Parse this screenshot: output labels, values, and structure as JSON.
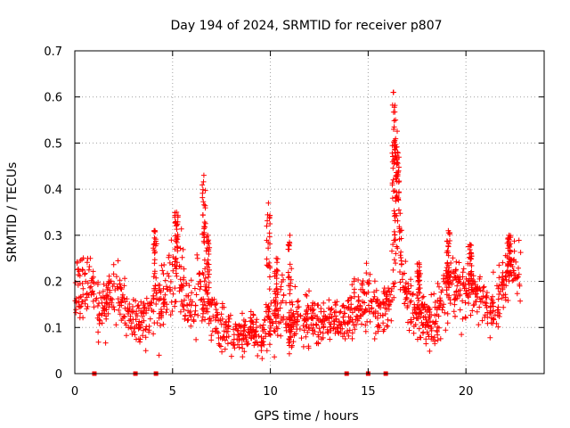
{
  "chart_data": {
    "type": "scatter",
    "title": "Day 194 of 2024, SRMTID for receiver p807",
    "xlabel": "GPS time / hours",
    "ylabel": "SRMTID / TECUs",
    "xlim": [
      0,
      24
    ],
    "ylim": [
      0,
      0.7
    ],
    "xticks": [
      0,
      5,
      10,
      15,
      20
    ],
    "yticks": [
      0,
      0.1,
      0.2,
      0.3,
      0.4,
      0.5,
      0.6,
      0.7
    ],
    "xtick_labels": [
      "0",
      "5",
      "10",
      "15",
      "20"
    ],
    "ytick_labels": [
      "0",
      "0.1",
      "0.2",
      "0.3",
      "0.4",
      "0.5",
      "0.6",
      "0.7"
    ],
    "grid": true,
    "marker": "+",
    "color": "#ff0000",
    "series_profile": {
      "name": "SRMTID",
      "x": [
        0.0,
        0.5,
        0.8,
        1.2,
        1.6,
        2.0,
        2.4,
        2.8,
        3.2,
        3.6,
        4.0,
        4.3,
        4.6,
        5.0,
        5.3,
        5.6,
        6.0,
        6.4,
        6.7,
        7.0,
        7.5,
        8.0,
        8.5,
        9.0,
        9.5,
        9.8,
        10.2,
        10.6,
        11.0,
        11.4,
        11.8,
        12.2,
        12.6,
        13.0,
        13.5,
        14.0,
        14.5,
        15.0,
        15.4,
        15.8,
        16.2,
        16.5,
        16.8,
        17.2,
        17.6,
        18.0,
        18.4,
        18.8,
        19.2,
        19.6,
        20.0,
        20.4,
        20.8,
        21.2,
        21.6,
        22.0,
        22.4,
        22.8
      ],
      "y": [
        0.17,
        0.18,
        0.22,
        0.13,
        0.15,
        0.18,
        0.16,
        0.13,
        0.11,
        0.12,
        0.15,
        0.16,
        0.17,
        0.2,
        0.23,
        0.17,
        0.14,
        0.2,
        0.17,
        0.12,
        0.11,
        0.09,
        0.08,
        0.1,
        0.07,
        0.12,
        0.1,
        0.16,
        0.09,
        0.13,
        0.12,
        0.11,
        0.11,
        0.12,
        0.11,
        0.12,
        0.15,
        0.18,
        0.13,
        0.12,
        0.19,
        0.35,
        0.2,
        0.15,
        0.13,
        0.12,
        0.1,
        0.17,
        0.2,
        0.18,
        0.18,
        0.16,
        0.17,
        0.13,
        0.15,
        0.2,
        0.23,
        0.21
      ],
      "spread": [
        0.05,
        0.05,
        0.05,
        0.04,
        0.04,
        0.05,
        0.04,
        0.04,
        0.04,
        0.04,
        0.05,
        0.06,
        0.05,
        0.06,
        0.06,
        0.05,
        0.05,
        0.06,
        0.05,
        0.04,
        0.04,
        0.03,
        0.03,
        0.03,
        0.03,
        0.04,
        0.04,
        0.05,
        0.04,
        0.04,
        0.04,
        0.03,
        0.03,
        0.03,
        0.03,
        0.04,
        0.04,
        0.05,
        0.04,
        0.04,
        0.05,
        0.07,
        0.05,
        0.04,
        0.04,
        0.04,
        0.04,
        0.05,
        0.05,
        0.05,
        0.05,
        0.04,
        0.04,
        0.04,
        0.04,
        0.05,
        0.05,
        0.04
      ]
    },
    "peaks": [
      {
        "x": 4.1,
        "y": 0.31
      },
      {
        "x": 5.2,
        "y": 0.35
      },
      {
        "x": 6.6,
        "y": 0.43
      },
      {
        "x": 6.8,
        "y": 0.3
      },
      {
        "x": 9.9,
        "y": 0.37
      },
      {
        "x": 10.3,
        "y": 0.25
      },
      {
        "x": 11.0,
        "y": 0.3
      },
      {
        "x": 16.3,
        "y": 0.61
      },
      {
        "x": 16.4,
        "y": 0.55
      },
      {
        "x": 16.5,
        "y": 0.48
      },
      {
        "x": 17.6,
        "y": 0.24
      },
      {
        "x": 19.1,
        "y": 0.31
      },
      {
        "x": 20.2,
        "y": 0.28
      },
      {
        "x": 22.2,
        "y": 0.3
      }
    ],
    "zero_markers_x": [
      1.0,
      3.1,
      4.15,
      13.9,
      15.0,
      15.9
    ],
    "x_extent": [
      0.0,
      22.8
    ]
  }
}
